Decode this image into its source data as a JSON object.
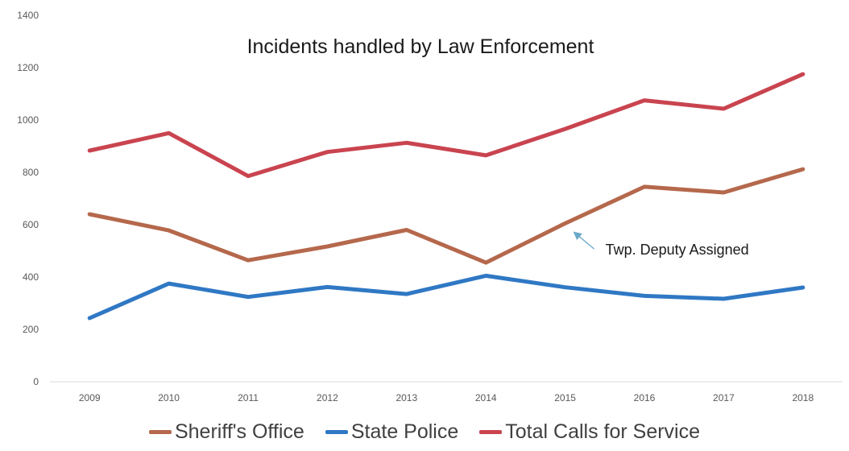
{
  "chart_data": {
    "type": "line",
    "title": "Incidents handled by Law Enforcement",
    "xlabel": "",
    "ylabel": "",
    "categories": [
      "2009",
      "2010",
      "2011",
      "2012",
      "2013",
      "2014",
      "2015",
      "2016",
      "2017",
      "2018"
    ],
    "ylim": [
      0,
      1400
    ],
    "yticks": [
      0,
      200,
      400,
      600,
      800,
      1000,
      1200,
      1400
    ],
    "grid": false,
    "legend_position": "bottom",
    "series": [
      {
        "name": "Sheriff's Office",
        "color": "#b5684c",
        "values": [
          640,
          578,
          464,
          517,
          580,
          455,
          605,
          745,
          723,
          812
        ]
      },
      {
        "name": "State Police",
        "color": "#2f78c4",
        "values": [
          243,
          375,
          324,
          362,
          335,
          405,
          361,
          328,
          317,
          360
        ]
      },
      {
        "name": "Total Calls for Service",
        "color": "#c9444f",
        "values": [
          883,
          950,
          786,
          878,
          913,
          865,
          966,
          1075,
          1043,
          1175
        ]
      }
    ],
    "annotations": [
      {
        "text": "Twp. Deputy Assigned",
        "arrow_to": {
          "x": "2015",
          "y": 575
        },
        "text_at": {
          "x": "2015",
          "y": 495
        },
        "color": "#6aa8c9"
      }
    ]
  }
}
